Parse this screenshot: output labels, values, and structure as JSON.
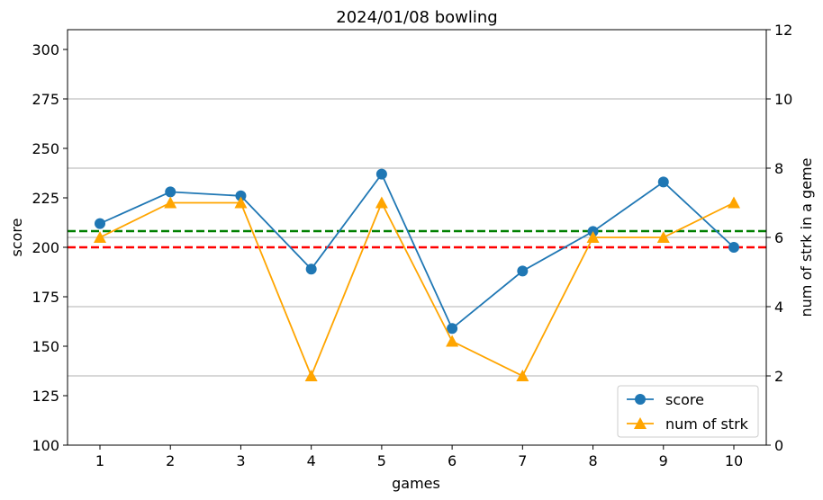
{
  "chart_data": {
    "type": "line",
    "title": "2024/01/08 bowling",
    "xlabel": "games",
    "ylabel": "score",
    "y2label": "num of strk in a geme",
    "x": [
      1,
      2,
      3,
      4,
      5,
      6,
      7,
      8,
      9,
      10
    ],
    "ylim": [
      100,
      310
    ],
    "y2lim": [
      0,
      12
    ],
    "yticks": [
      100,
      125,
      150,
      175,
      200,
      225,
      250,
      275,
      300
    ],
    "y2ticks": [
      0,
      2,
      4,
      6,
      8,
      10,
      12
    ],
    "grid": "right-axis horizontal lines",
    "legend_position": "lower-right",
    "series": [
      {
        "name": "score",
        "axis": "left",
        "color": "#1f77b4",
        "marker": "circle",
        "values": [
          212,
          228,
          226,
          189,
          237,
          159,
          188,
          208,
          233,
          200
        ]
      },
      {
        "name": "num of strk",
        "axis": "right",
        "color": "#ffa500",
        "marker": "triangle",
        "values": [
          6,
          7,
          7,
          2,
          7,
          3,
          2,
          6,
          6,
          7
        ]
      }
    ],
    "reference_lines": [
      {
        "axis": "left",
        "value": 208.2,
        "color": "#008000",
        "style": "dashed"
      },
      {
        "axis": "left",
        "value": 200,
        "color": "#ff0000",
        "style": "dashed"
      }
    ]
  }
}
